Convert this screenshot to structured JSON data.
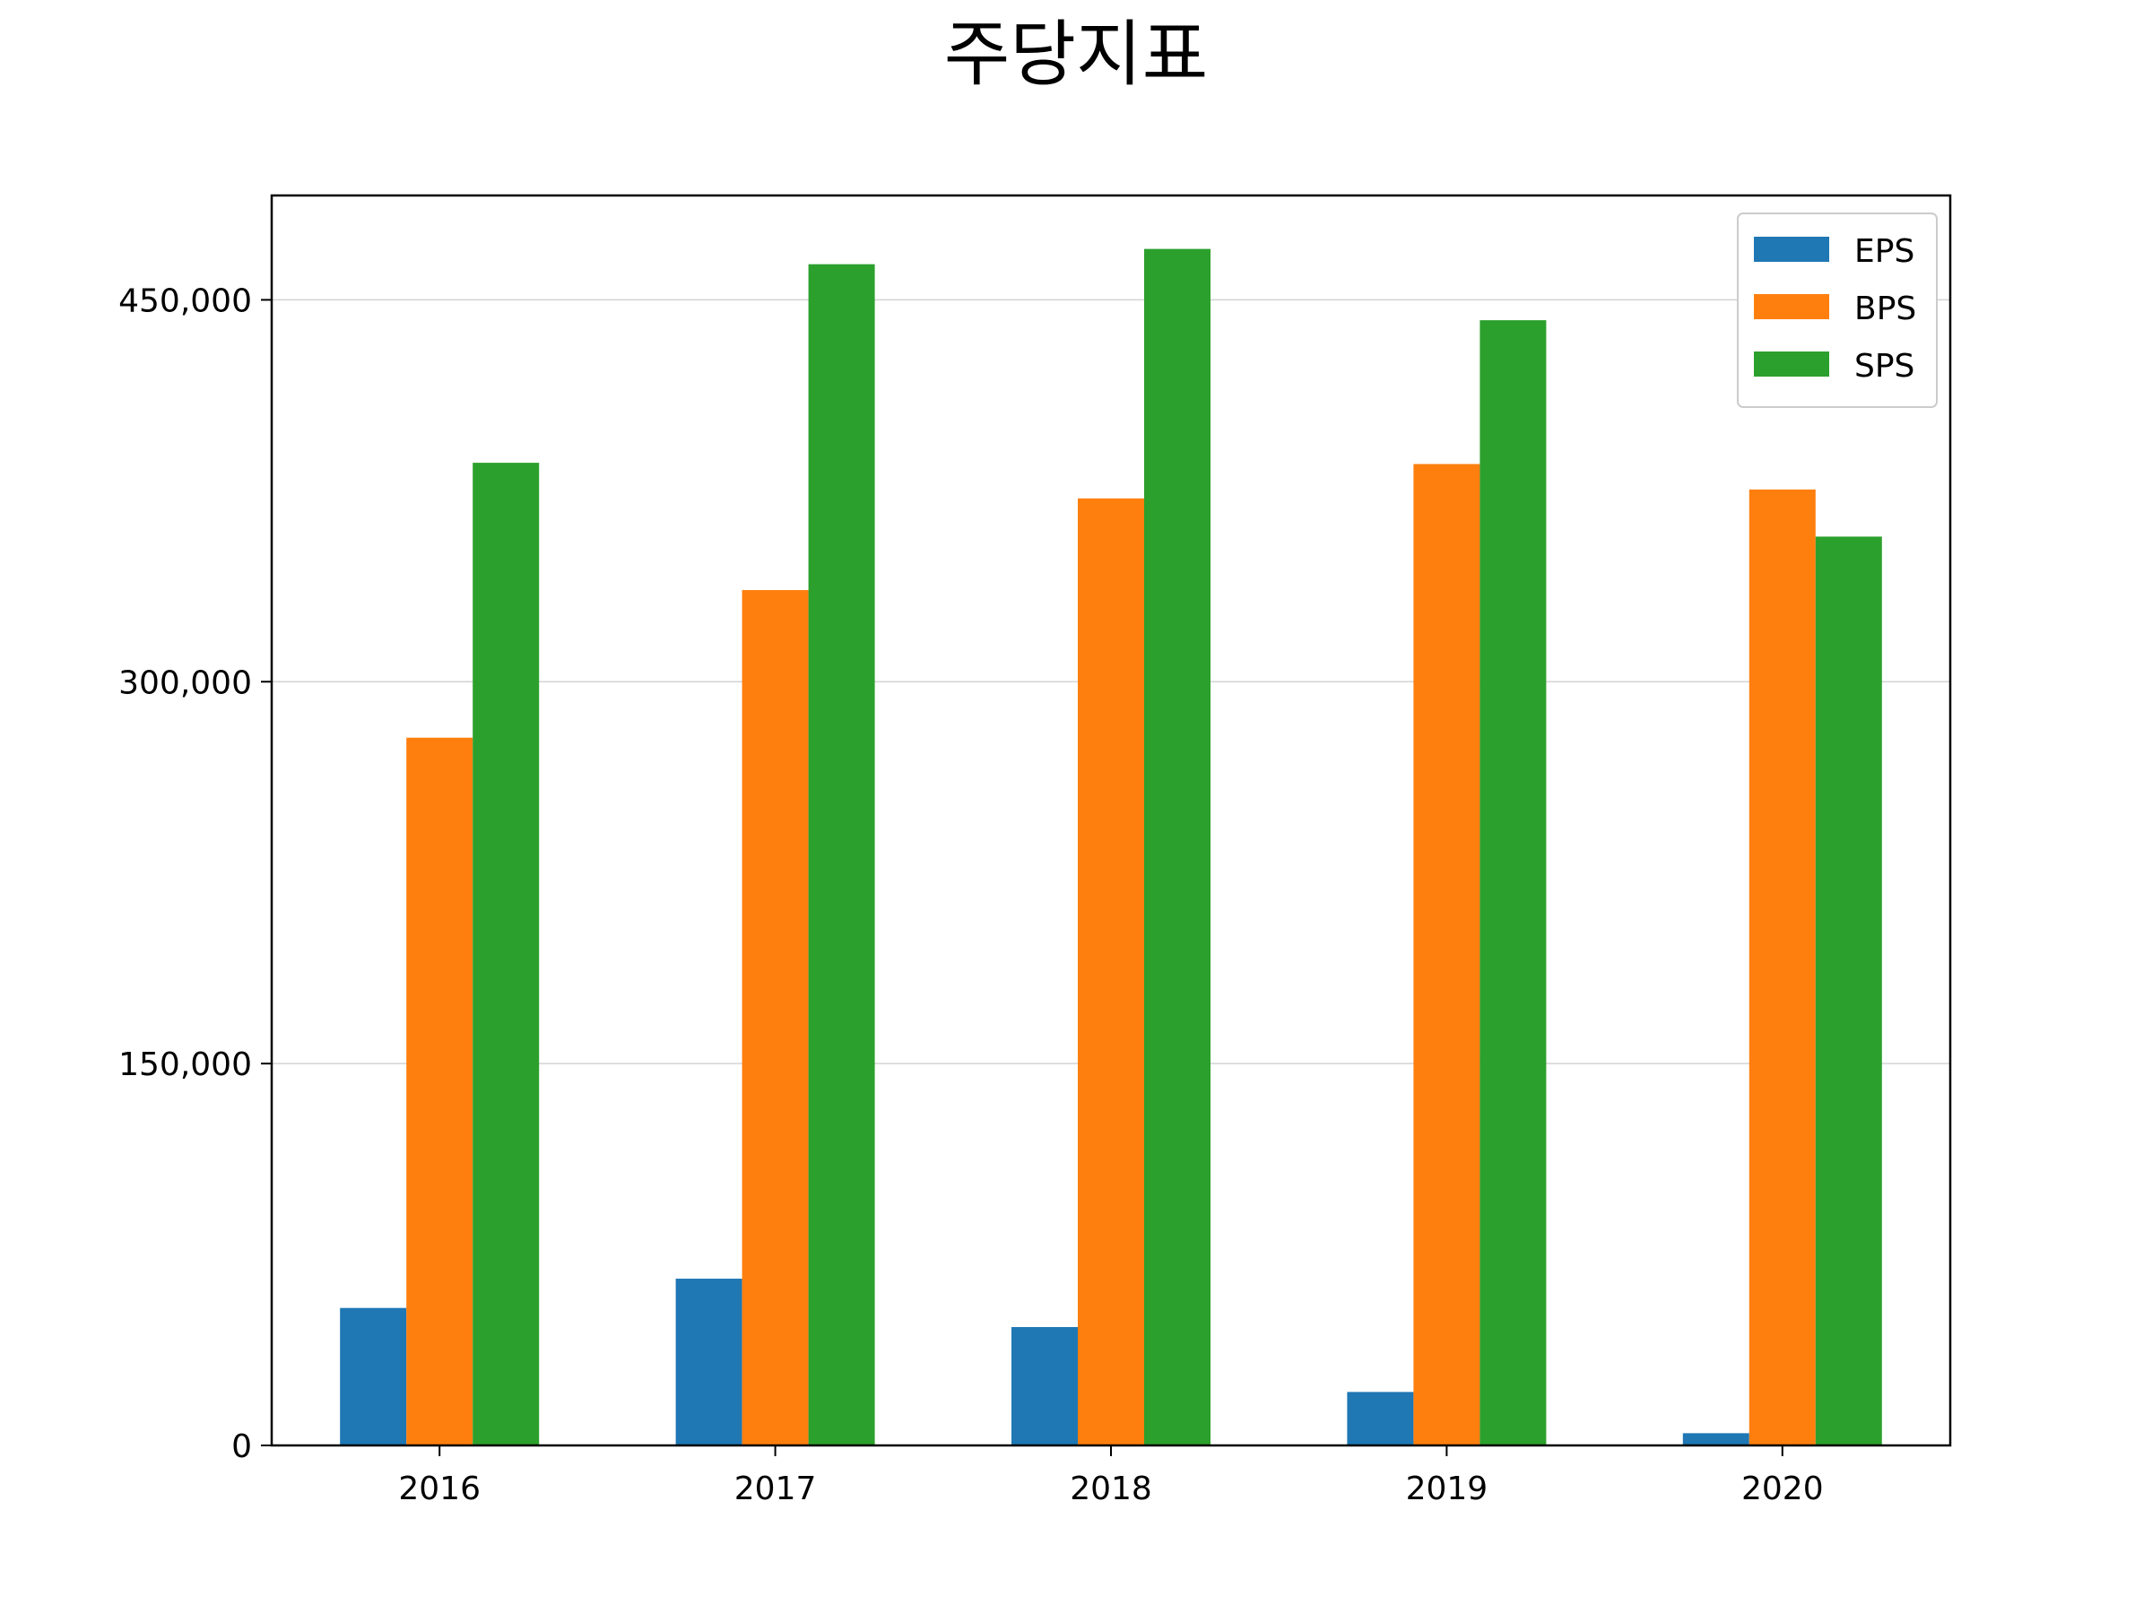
{
  "chart_data": {
    "type": "bar",
    "title": "주당지표",
    "xlabel": "",
    "ylabel": "",
    "categories": [
      "2016",
      "2017",
      "2018",
      "2019",
      "2020"
    ],
    "series": [
      {
        "name": "EPS",
        "color": "#1f77b4",
        "values": [
          54000,
          65500,
          46500,
          21000,
          4800
        ]
      },
      {
        "name": "BPS",
        "color": "#ff7f0e",
        "values": [
          278000,
          336000,
          372000,
          385500,
          375500
        ]
      },
      {
        "name": "SPS",
        "color": "#2ca02c",
        "values": [
          386000,
          464000,
          470000,
          442000,
          357000
        ]
      }
    ],
    "yticks": [
      0,
      150000,
      300000,
      450000
    ],
    "ytick_labels": [
      "0",
      "150,000",
      "300,000",
      "450,000"
    ],
    "ylim": [
      0,
      491000
    ],
    "grid": {
      "y": true,
      "x": false,
      "color": "#d3d3d3"
    },
    "legend": {
      "position": "top-right"
    }
  }
}
